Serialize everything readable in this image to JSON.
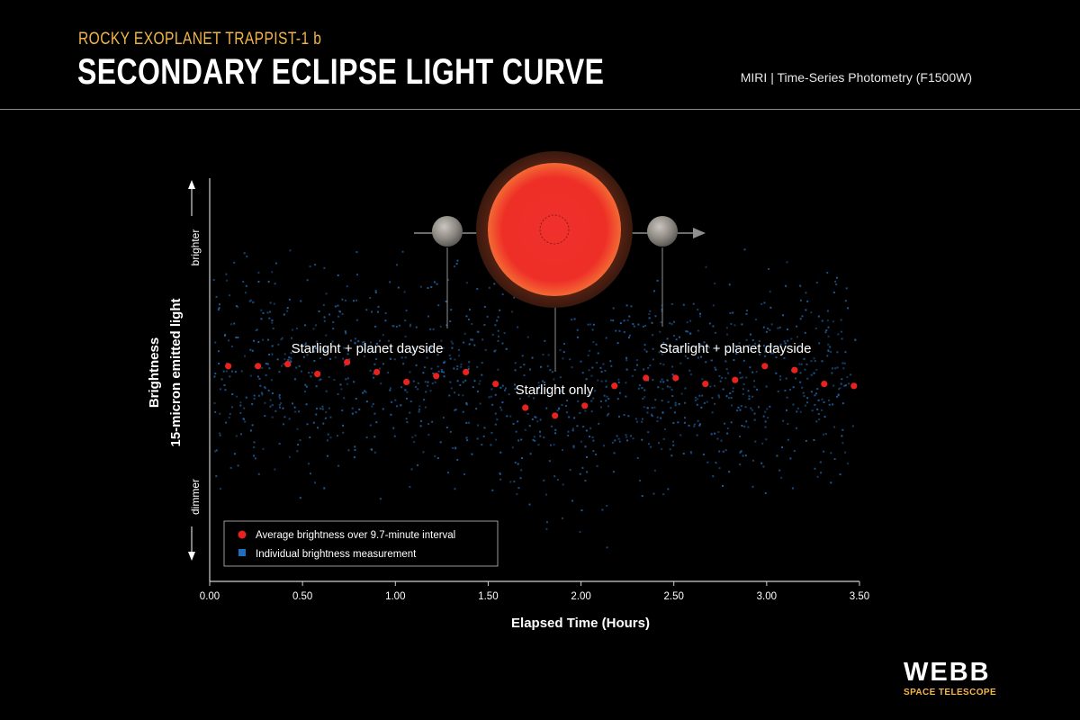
{
  "header": {
    "supertitle": "ROCKY EXOPLANET TRAPPIST-1 b",
    "title": "SECONDARY ECLIPSE LIGHT CURVE",
    "instrument": "MIRI | Time-Series Photometry (F1500W)"
  },
  "logo": {
    "word": "WEBB",
    "subtitle": "SPACE TELESCOPE"
  },
  "colors": {
    "background": "#000000",
    "average_point": "#e8231f",
    "individual_point": "#1f5f9e",
    "star": "#ef2b2b",
    "accent_title": "#f2b548"
  },
  "chart_data": {
    "type": "scatter",
    "title": "SECONDARY ECLIPSE LIGHT CURVE",
    "xlabel": "Elapsed Time (Hours)",
    "ylabel": "Brightness",
    "ylabel_sub": "15-micron emitted light",
    "y_top_label": "brighter",
    "y_bottom_label": "dimmer",
    "xlim": [
      0,
      3.5
    ],
    "ylim": [
      0,
      1
    ],
    "x_ticks": [
      "0.00",
      "0.50",
      "1.00",
      "1.50",
      "2.00",
      "2.50",
      "3.00",
      "3.50"
    ],
    "legend": {
      "position": "bottom-left",
      "entries": [
        "Average brightness over 9.7-minute interval",
        "Individual brightness measurement"
      ]
    },
    "annotations": [
      "Starlight + planet dayside",
      "Starlight only",
      "Starlight + planet dayside"
    ],
    "series": [
      {
        "name": "Average brightness over 9.7-minute interval",
        "x": [
          0.1,
          0.26,
          0.42,
          0.58,
          0.74,
          0.9,
          1.06,
          1.22,
          1.38,
          1.54,
          1.7,
          1.86,
          2.02,
          2.18,
          2.35,
          2.51,
          2.67,
          2.83,
          2.99,
          3.15,
          3.31,
          3.47
        ],
        "y": [
          0.53,
          0.53,
          0.535,
          0.51,
          0.54,
          0.515,
          0.49,
          0.505,
          0.515,
          0.485,
          0.425,
          0.405,
          0.43,
          0.48,
          0.5,
          0.5,
          0.485,
          0.495,
          0.53,
          0.52,
          0.485,
          0.48
        ]
      }
    ]
  }
}
